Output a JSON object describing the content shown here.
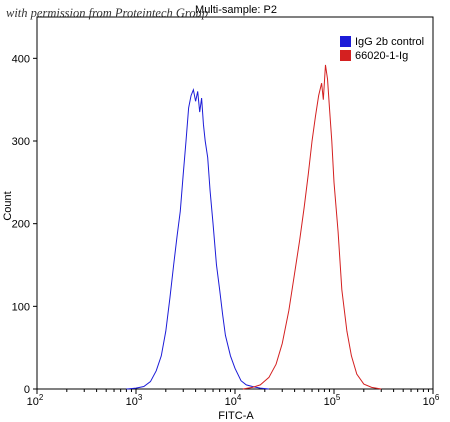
{
  "watermark": "with permission from Proteintech Group",
  "chart_data": {
    "type": "line",
    "title": "Multi-sample: P2",
    "xlabel": "FITC-A",
    "ylabel": "Count",
    "x_scale": "log",
    "xlim": [
      100,
      1000000
    ],
    "ylim": [
      0,
      450
    ],
    "x_ticks": [
      {
        "value": 100,
        "base": "10",
        "exp": "2"
      },
      {
        "value": 1000,
        "base": "10",
        "exp": "3"
      },
      {
        "value": 10000,
        "base": "10",
        "exp": "4"
      },
      {
        "value": 100000,
        "base": "10",
        "exp": "5"
      },
      {
        "value": 1000000,
        "base": "10",
        "exp": "6"
      }
    ],
    "y_ticks": [
      0,
      100,
      200,
      300,
      400
    ],
    "grid": false,
    "legend_position": "top-right",
    "series": [
      {
        "name": "IgG 2b control",
        "color": "#1c1cd8",
        "points": [
          [
            800,
            0
          ],
          [
            1000,
            1
          ],
          [
            1200,
            3
          ],
          [
            1400,
            9
          ],
          [
            1600,
            22
          ],
          [
            1800,
            40
          ],
          [
            2000,
            70
          ],
          [
            2200,
            110
          ],
          [
            2400,
            150
          ],
          [
            2600,
            185
          ],
          [
            2800,
            215
          ],
          [
            3000,
            260
          ],
          [
            3200,
            300
          ],
          [
            3400,
            340
          ],
          [
            3600,
            355
          ],
          [
            3800,
            362
          ],
          [
            4000,
            348
          ],
          [
            4200,
            360
          ],
          [
            4400,
            335
          ],
          [
            4600,
            352
          ],
          [
            4800,
            320
          ],
          [
            5000,
            300
          ],
          [
            5300,
            280
          ],
          [
            5600,
            240
          ],
          [
            6000,
            200
          ],
          [
            6500,
            150
          ],
          [
            7000,
            120
          ],
          [
            7500,
            90
          ],
          [
            8000,
            65
          ],
          [
            9000,
            40
          ],
          [
            10000,
            25
          ],
          [
            11500,
            10
          ],
          [
            13000,
            5
          ],
          [
            15000,
            3
          ],
          [
            18000,
            1
          ],
          [
            22000,
            0
          ]
        ]
      },
      {
        "name": "66020-1-Ig",
        "color": "#d42020",
        "points": [
          [
            12000,
            0
          ],
          [
            15000,
            2
          ],
          [
            18000,
            5
          ],
          [
            22000,
            14
          ],
          [
            26000,
            30
          ],
          [
            30000,
            55
          ],
          [
            35000,
            95
          ],
          [
            40000,
            140
          ],
          [
            45000,
            180
          ],
          [
            50000,
            220
          ],
          [
            55000,
            260
          ],
          [
            60000,
            300
          ],
          [
            65000,
            330
          ],
          [
            70000,
            355
          ],
          [
            75000,
            370
          ],
          [
            78000,
            350
          ],
          [
            82000,
            392
          ],
          [
            86000,
            375
          ],
          [
            90000,
            340
          ],
          [
            95000,
            300
          ],
          [
            100000,
            250
          ],
          [
            110000,
            190
          ],
          [
            120000,
            120
          ],
          [
            135000,
            70
          ],
          [
            150000,
            40
          ],
          [
            170000,
            18
          ],
          [
            200000,
            6
          ],
          [
            240000,
            2
          ],
          [
            300000,
            0
          ]
        ]
      }
    ]
  }
}
